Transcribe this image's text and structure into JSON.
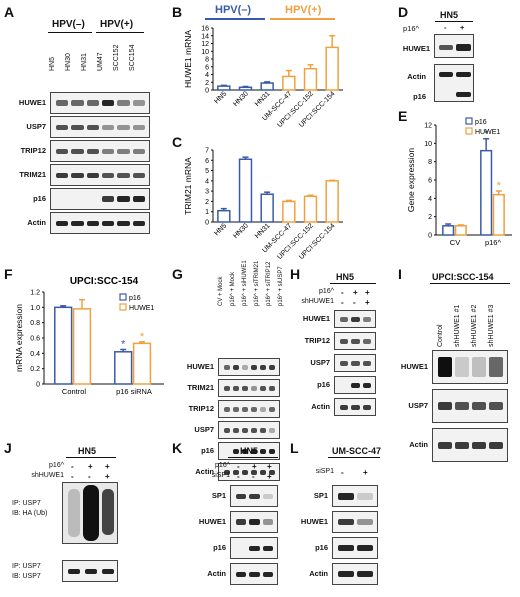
{
  "panels": {
    "A": {
      "letter": "A",
      "hpv_neg": "HPV(–)",
      "hpv_pos": "HPV(+)",
      "lanes": [
        "HN5",
        "HN30",
        "HN31",
        "UM47",
        "SCC152",
        "SCC154"
      ],
      "rows": [
        "HUWE1",
        "USP7",
        "TRIP12",
        "TRIM21",
        "p16",
        "Actin"
      ]
    },
    "B": {
      "letter": "B",
      "ylabel": "HUWE1 mRNA",
      "hpv_neg": "HPV(–)",
      "hpv_pos": "HPV(+)",
      "colors": {
        "neg": "#3b5ba8",
        "pos": "#f0a040"
      }
    },
    "C": {
      "letter": "C",
      "ylabel": "TRIM21 mRNA"
    },
    "D": {
      "letter": "D",
      "cell": "HN5",
      "p16_label": "p16^",
      "lanes": [
        "-",
        "+"
      ],
      "rows": [
        "HUWE1",
        "Actin",
        "p16"
      ]
    },
    "E": {
      "letter": "E",
      "ylabel": "Gene expression",
      "legend": [
        "p16",
        "HUWE1"
      ],
      "star": "*"
    },
    "F": {
      "letter": "F",
      "title": "UPCI:SCC-154",
      "ylabel": "mRNA expression",
      "legend": [
        "p16",
        "HUWE1"
      ],
      "star": "*"
    },
    "G": {
      "letter": "G",
      "lanes": [
        "CV + Mock",
        "p16^ + Mock",
        "p16^ + siHUWE1",
        "p16^ + siTRIM21",
        "p16^ + siTRIP12",
        "p16^ + siUSP7"
      ],
      "rows": [
        "HUWE1",
        "TRIM21",
        "TRIP12",
        "USP7",
        "p16",
        "Actin"
      ]
    },
    "H": {
      "letter": "H",
      "cell": "HN5",
      "cond_labels": [
        "p16^",
        "shHUWE1"
      ],
      "cond_vals": [
        [
          "-",
          "+",
          "+"
        ],
        [
          "-",
          "-",
          "+"
        ]
      ],
      "rows": [
        "HUWE1",
        "TRIP12",
        "USP7",
        "p16",
        "Actin"
      ]
    },
    "I": {
      "letter": "I",
      "cell": "UPCI:SCC-154",
      "lanes": [
        "Control",
        "shHUWE1 #1",
        "shHUWE1 #2",
        "shHUWE1 #3"
      ],
      "rows": [
        "HUWE1",
        "USP7",
        "Actin"
      ]
    },
    "J": {
      "letter": "J",
      "cell": "HN5",
      "cond_labels": [
        "p16^",
        "shHUWE1"
      ],
      "cond_vals": [
        [
          "-",
          "+",
          "+"
        ],
        [
          "-",
          "-",
          "+"
        ]
      ],
      "ip1": "IP: USP7",
      "ib1": "IB: HA (Ub)",
      "ip2": "IP: USP7",
      "ib2": "IB: USP7"
    },
    "K": {
      "letter": "K",
      "cell": "HN5",
      "cond_labels": [
        "p16^",
        "siSP1"
      ],
      "cond_vals": [
        [
          "-",
          "+",
          "+"
        ],
        [
          "-",
          "-",
          "+"
        ]
      ],
      "rows": [
        "SP1",
        "HUWE1",
        "p16",
        "Actin"
      ]
    },
    "L": {
      "letter": "L",
      "cell": "UM-SCC-47",
      "cond_labels": [
        "siSP1"
      ],
      "cond_vals": [
        [
          "-",
          "+"
        ]
      ],
      "rows": [
        "SP1",
        "HUWE1",
        "p16",
        "Actin"
      ]
    }
  },
  "chart_data": [
    {
      "panel": "B",
      "type": "bar",
      "categories": [
        "HN5",
        "HN30",
        "HN31",
        "UM-SCC-47",
        "UPCI:SCC-152",
        "UPCI:SCC-154"
      ],
      "values": [
        1,
        0.7,
        1.8,
        3.5,
        5.5,
        11
      ],
      "errors": [
        0.2,
        0.2,
        0.3,
        1.5,
        1.0,
        3.0
      ],
      "ylabel": "HUWE1 mRNA",
      "ylim": [
        0,
        16
      ],
      "yticks": [
        0,
        2,
        4,
        6,
        8,
        10,
        12,
        14,
        16
      ]
    },
    {
      "panel": "C",
      "type": "bar",
      "categories": [
        "HN5",
        "HN30",
        "HN31",
        "UM-SCC-47",
        "UPCI:SCC-152",
        "UPCI:SCC-154"
      ],
      "values": [
        1.1,
        6.1,
        2.7,
        2.0,
        2.5,
        4.0
      ],
      "errors": [
        0.2,
        0.2,
        0.2,
        0.1,
        0.1,
        0.05
      ],
      "ylabel": "TRIM21 mRNA",
      "ylim": [
        0,
        7
      ],
      "yticks": [
        0,
        1,
        2,
        3,
        4,
        5,
        6,
        7
      ]
    },
    {
      "panel": "E",
      "type": "bar",
      "categories": [
        "CV",
        "p16^"
      ],
      "series": [
        {
          "name": "p16",
          "values": [
            1,
            9.2
          ],
          "errors": [
            0.2,
            1.3
          ]
        },
        {
          "name": "HUWE1",
          "values": [
            1,
            4.4
          ],
          "errors": [
            0.1,
            0.4
          ]
        }
      ],
      "ylabel": "Gene expression",
      "ylim": [
        0,
        12
      ],
      "yticks": [
        0,
        2,
        4,
        6,
        8,
        10,
        12
      ]
    },
    {
      "panel": "F",
      "type": "bar",
      "categories": [
        "Control",
        "p16 siRNA"
      ],
      "series": [
        {
          "name": "p16",
          "values": [
            1,
            0.42
          ],
          "errors": [
            0.02,
            0.03
          ]
        },
        {
          "name": "HUWE1",
          "values": [
            0.98,
            0.53
          ],
          "errors": [
            0.12,
            0.02
          ]
        }
      ],
      "title": "UPCI:SCC-154",
      "ylabel": "mRNA expression",
      "ylim": [
        0,
        1.2
      ],
      "yticks": [
        0,
        0.2,
        0.4,
        0.6,
        0.8,
        1,
        1.2
      ]
    }
  ]
}
